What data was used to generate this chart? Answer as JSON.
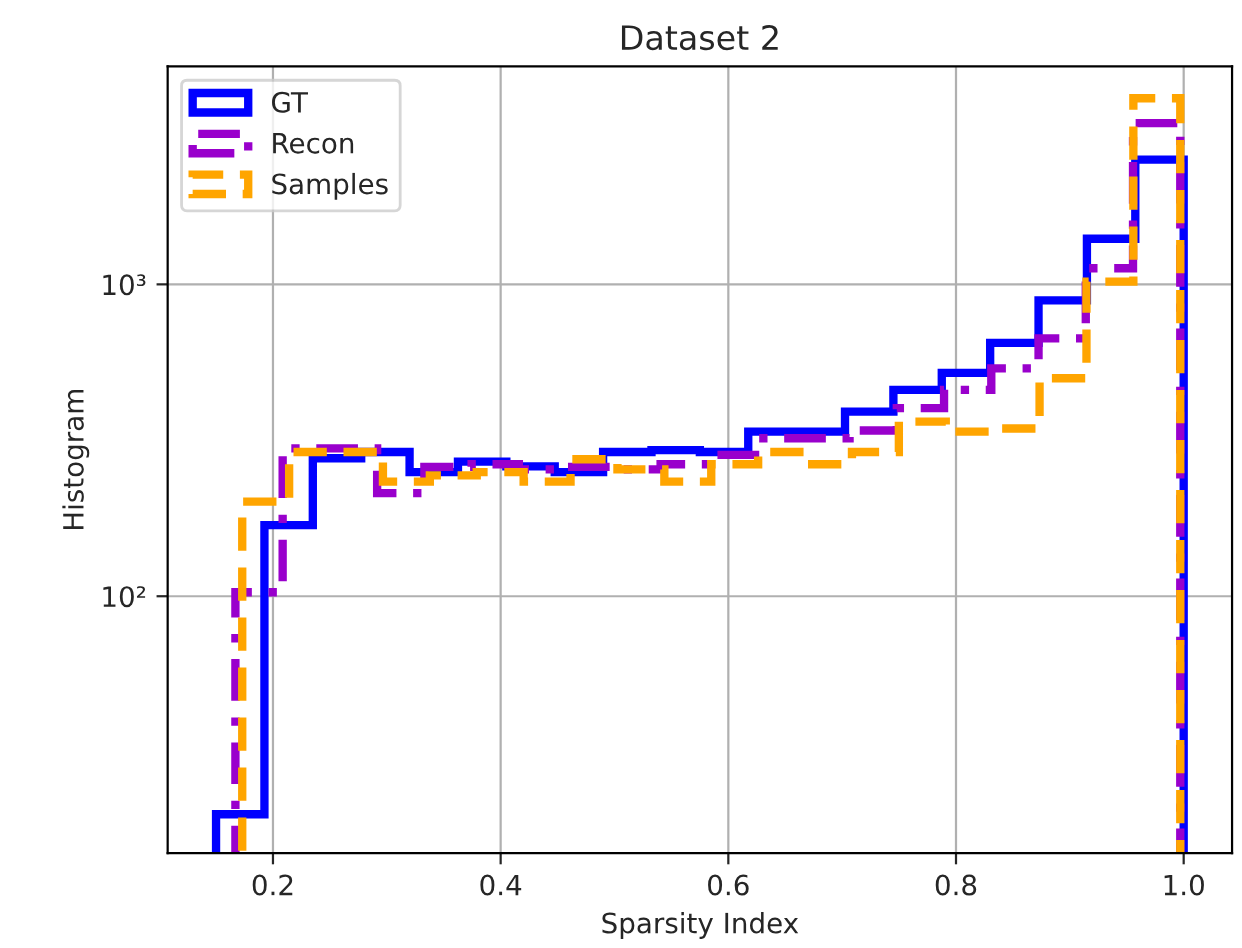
{
  "chart_data": {
    "type": "step",
    "title": "Dataset 2",
    "xlabel": "Sparsity Index",
    "ylabel": "Histogram",
    "log": "y",
    "grid": true,
    "legend": "top left",
    "xlim": [
      0.1075,
      1.0425
    ],
    "xticks": [
      0.2,
      0.4,
      0.6,
      0.8,
      {
        "value": 1.0,
        "label": "1.0"
      }
    ],
    "ylim": [
      15,
      5000
    ],
    "yticks": [
      {
        "value": 100,
        "label": "10²"
      },
      {
        "value": 1000,
        "label": "10³"
      }
    ],
    "series": [
      {
        "name": "GT",
        "color": "#0000ff",
        "line_style": "solid",
        "x": [
          0.15,
          0.1925,
          0.235,
          0.2775,
          0.32,
          0.3625,
          0.405,
          0.4475,
          0.49,
          0.5325,
          0.575,
          0.6175,
          0.66,
          0.7025,
          0.745,
          0.7875,
          0.83,
          0.8725,
          0.915,
          0.9575,
          1.0
        ],
        "values": [
          20,
          169,
          277,
          290,
          250,
          270,
          261,
          250,
          290,
          294,
          290,
          337,
          337,
          391,
          459,
          520,
          649,
          889,
          1400,
          2510,
          2510
        ]
      },
      {
        "name": "Recon",
        "color": "#9900cc",
        "line_style": "dashdot",
        "x": [
          0.167,
          0.2085,
          0.25,
          0.2915,
          0.333,
          0.3745,
          0.416,
          0.4575,
          0.499,
          0.5405,
          0.582,
          0.6235,
          0.665,
          0.7065,
          0.748,
          0.7895,
          0.831,
          0.8725,
          0.914,
          0.9555,
          0.997
        ],
        "values": [
          103,
          298,
          298,
          214,
          260,
          265,
          255,
          260,
          255,
          265,
          284,
          321,
          321,
          340,
          401,
          459,
          538,
          671,
          1126,
          3290,
          3290
        ]
      },
      {
        "name": "Samples",
        "color": "#ffa500",
        "line_style": "dashed",
        "x": [
          0.173,
          0.2142,
          0.2554,
          0.2966,
          0.3378,
          0.379,
          0.4202,
          0.4614,
          0.5026,
          0.5438,
          0.585,
          0.6262,
          0.6674,
          0.7086,
          0.7498,
          0.791,
          0.8322,
          0.8734,
          0.9146,
          0.9558,
          0.997
        ],
        "values": [
          201,
          290,
          290,
          233,
          244,
          250,
          233,
          275,
          255,
          233,
          265,
          290,
          265,
          290,
          363,
          337,
          345,
          500,
          1020,
          3950,
          3950
        ]
      }
    ]
  }
}
